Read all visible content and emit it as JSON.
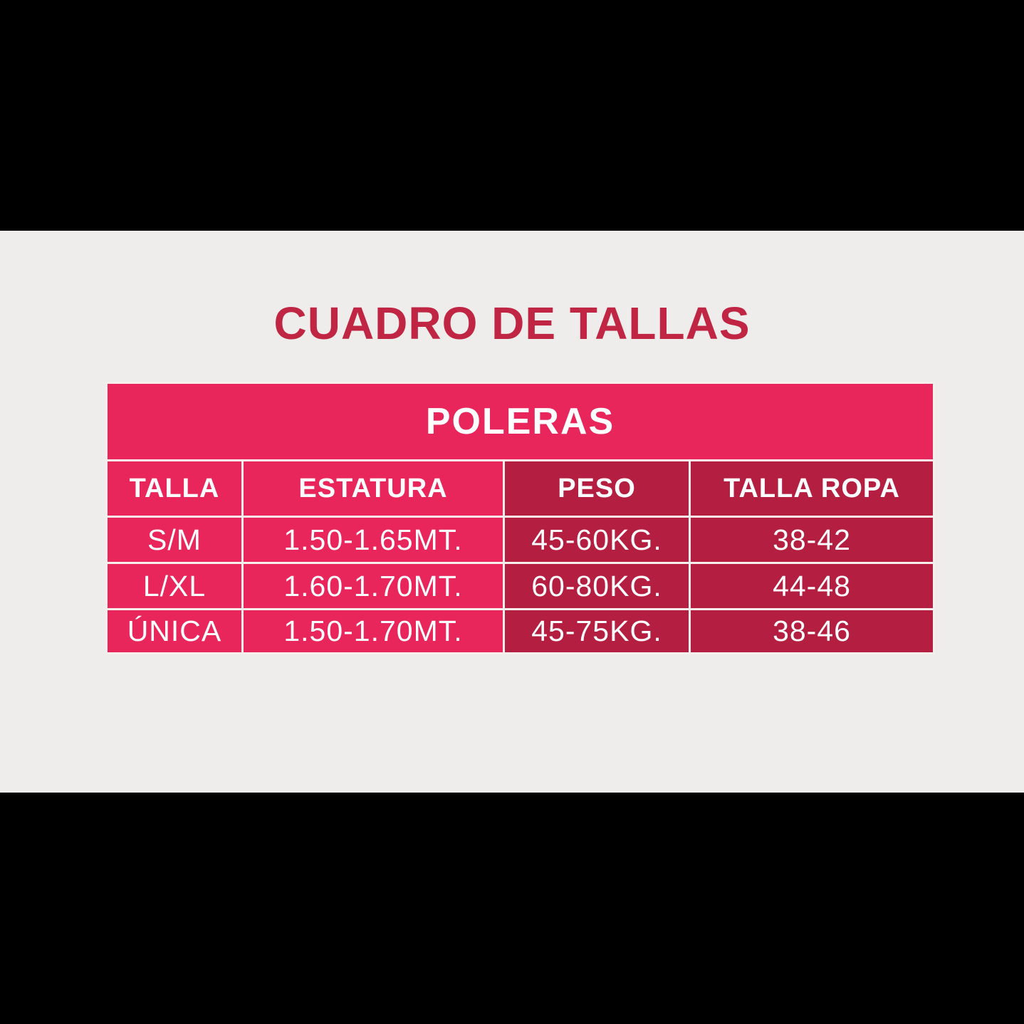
{
  "chart_data": {
    "type": "table",
    "title": "CUADRO DE TALLAS",
    "group_header": "POLERAS",
    "columns": [
      "TALLA",
      "ESTATURA",
      "PESO",
      "TALLA ROPA"
    ],
    "rows": [
      [
        "S/M",
        "1.50-1.65MT.",
        "45-60KG.",
        "38-42"
      ],
      [
        "L/XL",
        "1.60-1.70MT.",
        "60-80KG.",
        "44-48"
      ],
      [
        "ÚNICA",
        "1.50-1.70MT.",
        "45-75KG.",
        "38-46"
      ]
    ],
    "layout": {
      "legend": "none",
      "grid": "white cell borders",
      "column_color_scheme": [
        "pink",
        "pink",
        "dark-red",
        "dark-red"
      ]
    }
  },
  "colors": {
    "background": "#eeedeb",
    "letterbox": "#000000",
    "title_text": "#c02543",
    "pink_cell": "#e8265b",
    "dark_red_cell": "#b41f41",
    "cell_border": "#f7efeb",
    "cell_text": "#ffffff"
  }
}
